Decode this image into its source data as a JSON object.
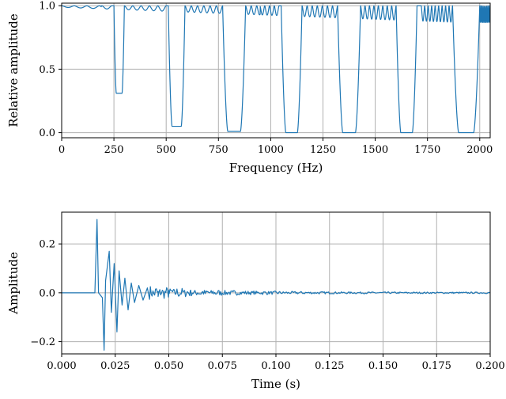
{
  "colors": {
    "line": "#1f77b4",
    "grid": "#b0b0b0"
  },
  "chart_data": [
    {
      "type": "line",
      "xlabel": "Frequency (Hz)",
      "ylabel": "Relative amplitude",
      "xlim": [
        0,
        2050
      ],
      "ylim": [
        -0.04,
        1.02
      ],
      "grid": true,
      "xticks": [
        0,
        250,
        500,
        750,
        1000,
        1250,
        1500,
        1750,
        2000
      ],
      "xtick_labels": [
        "0",
        "250",
        "500",
        "750",
        "1000",
        "1250",
        "1500",
        "1750",
        "2000"
      ],
      "yticks": [
        0.0,
        0.5,
        1.0
      ],
      "ytick_labels": [
        "0.0",
        "0.5",
        "1.0"
      ],
      "series": [
        {
          "notches": [
            {
              "start": 240,
              "end": 300,
              "center": 275,
              "min": 0.31
            },
            {
              "start": 500,
              "end": 590,
              "center": 550,
              "min": 0.05
            },
            {
              "start": 770,
              "end": 880,
              "center": 825,
              "min": 0.01
            },
            {
              "start": 1040,
              "end": 1150,
              "center": 1100,
              "min": 0.0
            },
            {
              "start": 1320,
              "end": 1430,
              "center": 1375,
              "min": 0.0
            },
            {
              "start": 1600,
              "end": 1720,
              "center": 1650,
              "min": 0.0
            },
            {
              "start": 1870,
              "end": 2000,
              "center": 1935,
              "min": 0.0
            }
          ]
        }
      ]
    },
    {
      "type": "line",
      "xlabel": "Time (s)",
      "ylabel": "Amplitude",
      "xlim": [
        0.0,
        0.2
      ],
      "ylim": [
        -0.25,
        0.33
      ],
      "grid": true,
      "xticks": [
        0.0,
        0.025,
        0.05,
        0.075,
        0.1,
        0.125,
        0.15,
        0.175,
        0.2
      ],
      "xtick_labels": [
        "0.000",
        "0.025",
        "0.050",
        "0.075",
        "0.100",
        "0.125",
        "0.150",
        "0.175",
        "0.200"
      ],
      "yticks": [
        -0.2,
        0.0,
        0.2
      ],
      "ytick_labels": [
        "−0.2",
        "0.0",
        "0.2"
      ],
      "series": [
        {
          "impulse_response": [
            [
              0.0,
              0.0
            ],
            [
              0.0155,
              0.0
            ],
            [
              0.0165,
              0.3
            ],
            [
              0.0172,
              0.0
            ],
            [
              0.019,
              -0.02
            ],
            [
              0.0198,
              -0.235
            ],
            [
              0.0205,
              0.05
            ],
            [
              0.0222,
              0.17
            ],
            [
              0.0232,
              -0.08
            ],
            [
              0.0245,
              0.12
            ],
            [
              0.0258,
              -0.16
            ],
            [
              0.0268,
              0.09
            ],
            [
              0.0282,
              -0.05
            ],
            [
              0.0295,
              0.06
            ],
            [
              0.031,
              -0.07
            ],
            [
              0.0325,
              0.04
            ],
            [
              0.034,
              -0.04
            ],
            [
              0.036,
              0.03
            ],
            [
              0.038,
              -0.03
            ],
            [
              0.04,
              0.02
            ],
            [
              0.045,
              -0.015
            ],
            [
              0.05,
              0.01
            ],
            [
              0.06,
              0.008
            ],
            [
              0.08,
              0.004
            ],
            [
              0.1,
              0.003
            ],
            [
              0.15,
              0.002
            ],
            [
              0.2,
              0.0
            ]
          ]
        }
      ]
    }
  ]
}
